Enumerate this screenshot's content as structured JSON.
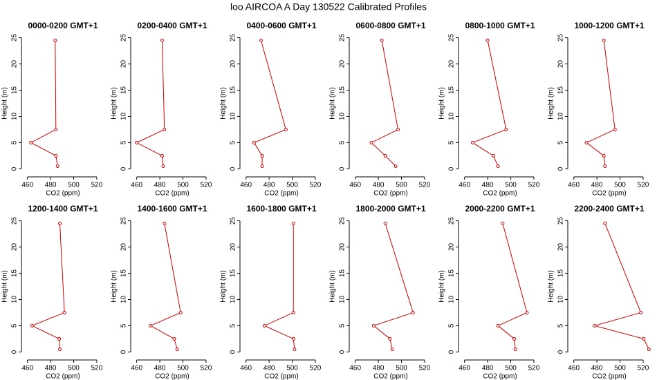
{
  "title": "loo AIRCOA A  Day 130522  Calibrated Profiles",
  "chart_data": [
    {
      "type": "line",
      "title": "0000-0200 GMT+1",
      "x_label": "CO2 (ppm)",
      "y_label": "Height (m)",
      "color": "#cc0000",
      "x": [
        486,
        484.6,
        463,
        484.6,
        484
      ],
      "values": [
        0.5,
        2.5,
        5,
        7.5,
        24.5
      ],
      "xlim": [
        456,
        526
      ],
      "ylim": [
        -1,
        26
      ],
      "xticks": [
        460,
        480,
        500,
        520
      ],
      "yticks": [
        0,
        5,
        10,
        15,
        20,
        25
      ]
    },
    {
      "type": "line",
      "title": "0200-0400 GMT+1",
      "x_label": "CO2 (ppm)",
      "y_label": "Height (m)",
      "color": "#cc0000",
      "x": [
        483,
        482,
        460,
        484,
        482
      ],
      "values": [
        0.5,
        2.5,
        5,
        7.5,
        24.5
      ],
      "xlim": [
        456,
        526
      ],
      "ylim": [
        -1,
        26
      ],
      "xticks": [
        460,
        480,
        500,
        520
      ],
      "yticks": [
        0,
        5,
        10,
        15,
        20,
        25
      ]
    },
    {
      "type": "line",
      "title": "0400-0600 GMT+1",
      "x_label": "CO2 (ppm)",
      "y_label": "Height (m)",
      "color": "#cc0000",
      "x": [
        474,
        474,
        467,
        494.5,
        473
      ],
      "values": [
        0.5,
        2.5,
        5,
        7.5,
        24.5
      ],
      "xlim": [
        456,
        526
      ],
      "ylim": [
        -1,
        26
      ],
      "xticks": [
        460,
        480,
        500,
        520
      ],
      "yticks": [
        0,
        5,
        10,
        15,
        20,
        25
      ]
    },
    {
      "type": "line",
      "title": "0600-0800 GMT+1",
      "x_label": "CO2 (ppm)",
      "y_label": "Height (m)",
      "color": "#cc0000",
      "x": [
        495,
        486,
        474,
        497,
        483
      ],
      "values": [
        0.5,
        2.5,
        5,
        7.5,
        24.5
      ],
      "xlim": [
        456,
        526
      ],
      "ylim": [
        -1,
        26
      ],
      "xticks": [
        460,
        480,
        500,
        520
      ],
      "yticks": [
        0,
        5,
        10,
        15,
        20,
        25
      ]
    },
    {
      "type": "line",
      "title": "0800-1000 GMT+1",
      "x_label": "CO2 (ppm)",
      "y_label": "Height (m)",
      "color": "#cc0000",
      "x": [
        489,
        485,
        467,
        496,
        480
      ],
      "values": [
        0.5,
        2.5,
        5,
        7.5,
        24.5
      ],
      "xlim": [
        456,
        526
      ],
      "ylim": [
        -1,
        26
      ],
      "xticks": [
        460,
        480,
        500,
        520
      ],
      "yticks": [
        0,
        5,
        10,
        15,
        20,
        25
      ]
    },
    {
      "type": "line",
      "title": "1000-1200 GMT+1",
      "x_label": "CO2 (ppm)",
      "y_label": "Height (m)",
      "color": "#cc0000",
      "x": [
        487,
        486,
        471,
        495.6,
        486
      ],
      "values": [
        0.5,
        2.5,
        5,
        7.5,
        24.5
      ],
      "xlim": [
        456,
        526
      ],
      "ylim": [
        -1,
        26
      ],
      "xticks": [
        460,
        480,
        500,
        520
      ],
      "yticks": [
        0,
        5,
        10,
        15,
        20,
        25
      ]
    },
    {
      "type": "line",
      "title": "1200-1400 GMT+1",
      "x_label": "CO2 (ppm)",
      "y_label": "Height (m)",
      "color": "#cc0000",
      "x": [
        488,
        487.5,
        464,
        492,
        488
      ],
      "values": [
        0.5,
        2.5,
        5,
        7.5,
        24.5
      ],
      "xlim": [
        456,
        526
      ],
      "ylim": [
        -1,
        26
      ],
      "xticks": [
        460,
        480,
        500,
        520
      ],
      "yticks": [
        0,
        5,
        10,
        15,
        20,
        25
      ]
    },
    {
      "type": "line",
      "title": "1400-1600 GMT+1",
      "x_label": "CO2 (ppm)",
      "y_label": "Height (m)",
      "color": "#cc0000",
      "x": [
        495,
        492.5,
        472,
        498,
        484
      ],
      "values": [
        0.5,
        2.5,
        5,
        7.5,
        24.5
      ],
      "xlim": [
        456,
        526
      ],
      "ylim": [
        -1,
        26
      ],
      "xticks": [
        460,
        480,
        500,
        520
      ],
      "yticks": [
        0,
        5,
        10,
        15,
        20,
        25
      ]
    },
    {
      "type": "line",
      "title": "1600-1800 GMT+1",
      "x_label": "CO2 (ppm)",
      "y_label": "Height (m)",
      "color": "#cc0000",
      "x": [
        502,
        501,
        476,
        501,
        501
      ],
      "values": [
        0.5,
        2.5,
        5,
        7.5,
        24.5
      ],
      "xlim": [
        456,
        526
      ],
      "ylim": [
        -1,
        26
      ],
      "xticks": [
        460,
        480,
        500,
        520
      ],
      "yticks": [
        0,
        5,
        10,
        15,
        20,
        25
      ]
    },
    {
      "type": "line",
      "title": "1800-2000 GMT+1",
      "x_label": "CO2 (ppm)",
      "y_label": "Height (m)",
      "color": "#cc0000",
      "x": [
        492,
        490,
        476,
        510,
        486
      ],
      "values": [
        0.5,
        2.5,
        5,
        7.5,
        24.5
      ],
      "xlim": [
        456,
        526
      ],
      "ylim": [
        -1,
        26
      ],
      "xticks": [
        460,
        480,
        500,
        520
      ],
      "yticks": [
        0,
        5,
        10,
        15,
        20,
        25
      ]
    },
    {
      "type": "line",
      "title": "2000-2200 GMT+1",
      "x_label": "CO2 (ppm)",
      "y_label": "Height (m)",
      "color": "#cc0000",
      "x": [
        504,
        503,
        489,
        514,
        493
      ],
      "values": [
        0.5,
        2.5,
        5,
        7.5,
        24.5
      ],
      "xlim": [
        456,
        526
      ],
      "ylim": [
        -1,
        26
      ],
      "xticks": [
        460,
        480,
        500,
        520
      ],
      "yticks": [
        0,
        5,
        10,
        15,
        20,
        25
      ]
    },
    {
      "type": "line",
      "title": "2200-2400 GMT+1",
      "x_label": "CO2 (ppm)",
      "y_label": "Height (m)",
      "color": "#cc0000",
      "x": [
        525,
        520.5,
        478,
        518,
        487
      ],
      "values": [
        0.5,
        2.5,
        5,
        7.5,
        24.5
      ],
      "xlim": [
        456,
        526
      ],
      "ylim": [
        -1,
        26
      ],
      "xticks": [
        460,
        480,
        500,
        520
      ],
      "yticks": [
        0,
        5,
        10,
        15,
        20,
        25
      ]
    }
  ]
}
